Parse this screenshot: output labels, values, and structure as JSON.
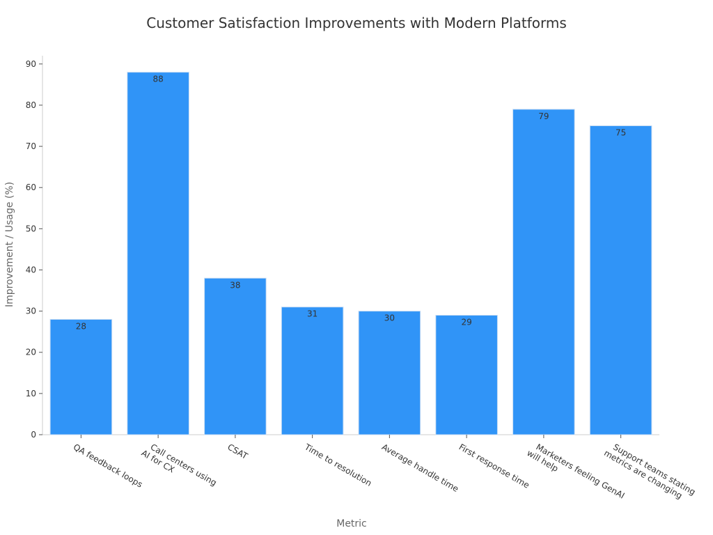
{
  "chart_data": {
    "type": "bar",
    "title": "Customer Satisfaction Improvements with Modern Platforms",
    "xlabel": "Metric",
    "ylabel": "Improvement / Usage (%)",
    "ylim": [
      0,
      92
    ],
    "yticks": [
      0,
      10,
      20,
      30,
      40,
      50,
      60,
      70,
      80,
      90
    ],
    "grid": false,
    "bar_color": "#3094f7",
    "categories": [
      [
        "QA feedback loops"
      ],
      [
        "Call centers using",
        "AI for CX"
      ],
      [
        "CSAT"
      ],
      [
        "Time to resolution"
      ],
      [
        "Average handle time"
      ],
      [
        "First response time"
      ],
      [
        "Marketers feeling GenAI",
        "will help"
      ],
      [
        "Support teams stating",
        "metrics are changing"
      ]
    ],
    "values": [
      28,
      88,
      38,
      31,
      30,
      29,
      79,
      75
    ]
  }
}
